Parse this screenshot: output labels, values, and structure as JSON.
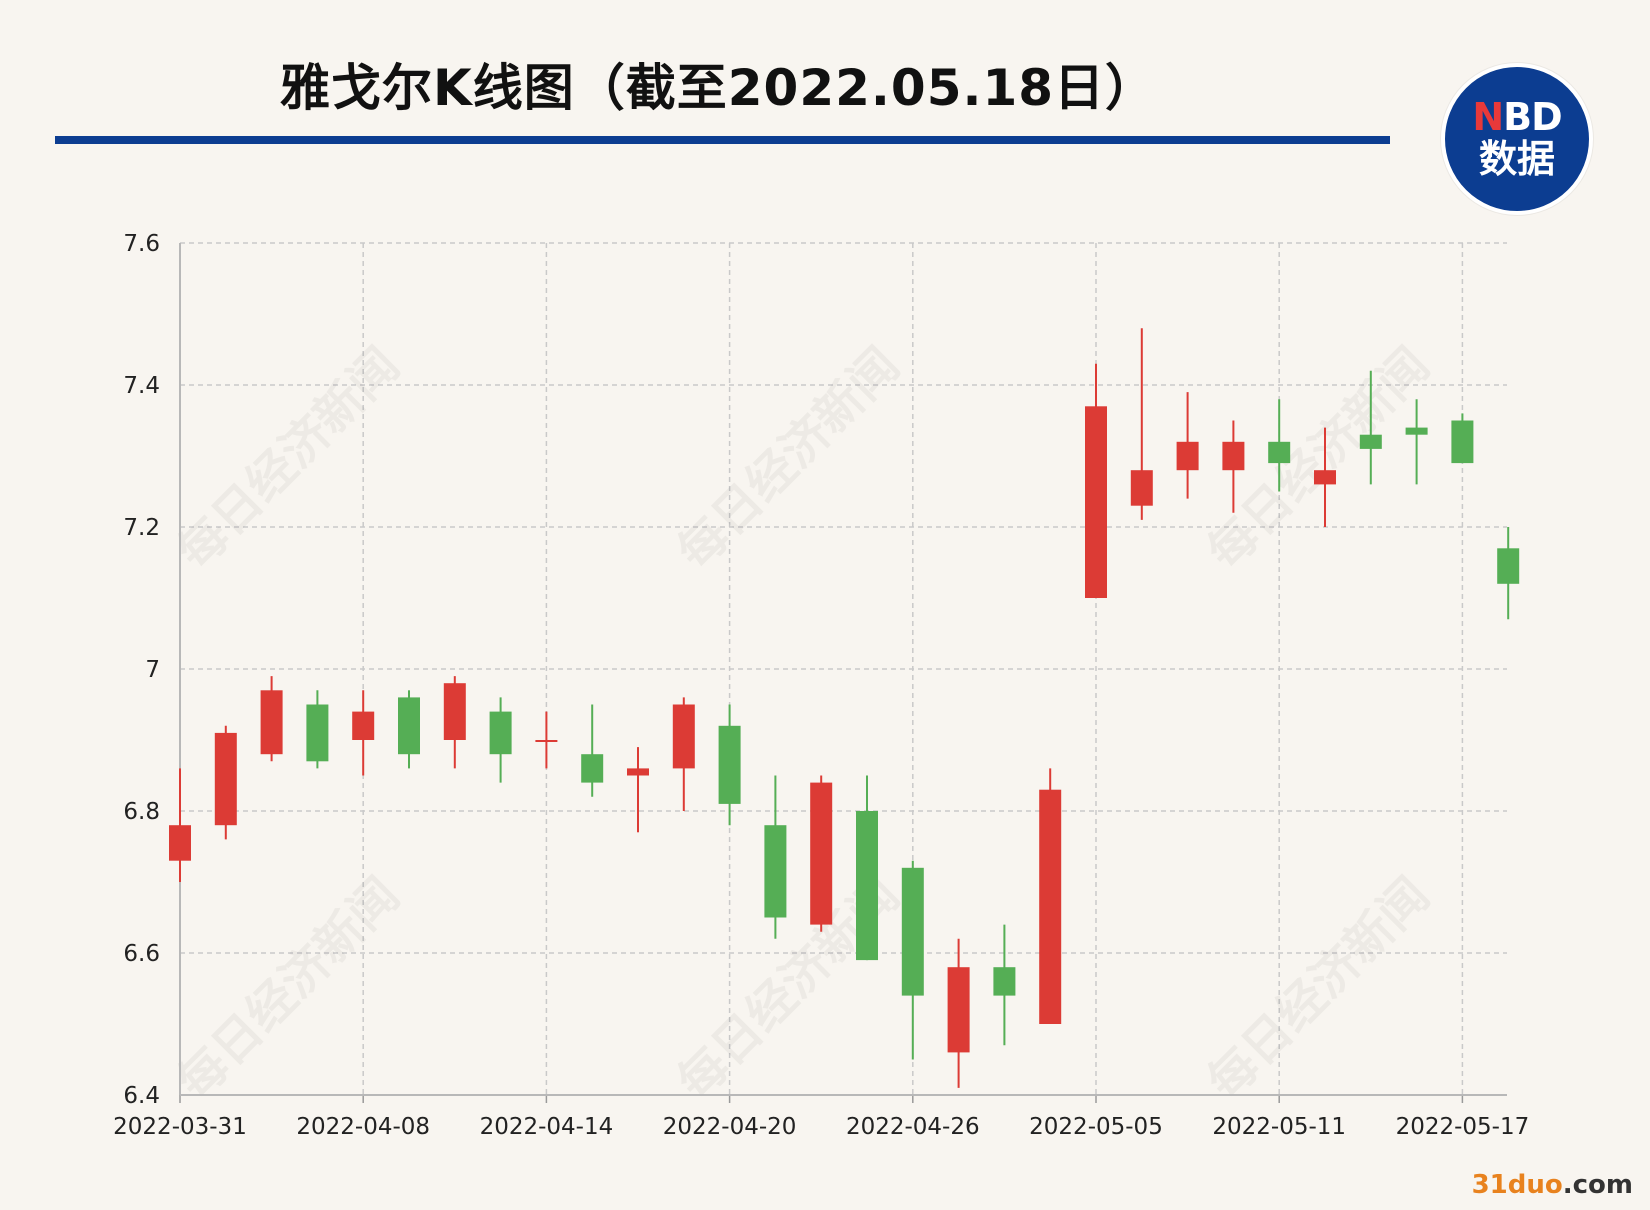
{
  "title": "雅戈尔K线图（截至2022.05.18日）",
  "logo": {
    "line1_accent": "N",
    "line1_rest": "BD",
    "line2": "数据"
  },
  "colors": {
    "background": "#f8f5f0",
    "rule": "#0c3d91",
    "logo_bg": "#0c3d91",
    "logo_accent": "#e8393a",
    "up": "#dc3b35",
    "down": "#55ae55",
    "grid": "#c9c9c9",
    "axis_text": "#222222",
    "watermark_orange": "#e8821e"
  },
  "watermarks": {
    "diagonal_text": "每日经济新闻",
    "brand_main": "31duo",
    "brand_tld": ".com"
  },
  "chart_data": {
    "type": "candlestick",
    "title": "雅戈尔K线图（截至2022.05.18日）",
    "xlabel": "",
    "ylabel": "",
    "ylim": [
      6.4,
      7.6
    ],
    "yticks": [
      6.4,
      6.6,
      6.8,
      7,
      7.2,
      7.4,
      7.6
    ],
    "ytick_labels": [
      "6.4",
      "6.6",
      "6.8",
      "7",
      "7.2",
      "7.4",
      "7.6"
    ],
    "grid": true,
    "x_tick_labels": [
      {
        "index": 0,
        "label": "2022-03-31"
      },
      {
        "index": 4,
        "label": "2022-04-08"
      },
      {
        "index": 8,
        "label": "2022-04-14"
      },
      {
        "index": 12,
        "label": "2022-04-20"
      },
      {
        "index": 16,
        "label": "2022-04-26"
      },
      {
        "index": 20,
        "label": "2022-05-05"
      },
      {
        "index": 24,
        "label": "2022-05-11"
      },
      {
        "index": 28,
        "label": "2022-05-17"
      }
    ],
    "candles": [
      {
        "open": 6.73,
        "close": 6.78,
        "high": 6.86,
        "low": 6.7
      },
      {
        "open": 6.78,
        "close": 6.91,
        "high": 6.92,
        "low": 6.76
      },
      {
        "open": 6.88,
        "close": 6.97,
        "high": 6.99,
        "low": 6.87
      },
      {
        "open": 6.95,
        "close": 6.87,
        "high": 6.97,
        "low": 6.86
      },
      {
        "open": 6.9,
        "close": 6.94,
        "high": 6.97,
        "low": 6.85
      },
      {
        "open": 6.96,
        "close": 6.88,
        "high": 6.97,
        "low": 6.86
      },
      {
        "open": 6.9,
        "close": 6.98,
        "high": 6.99,
        "low": 6.86
      },
      {
        "open": 6.94,
        "close": 6.88,
        "high": 6.96,
        "low": 6.84
      },
      {
        "open": 6.9,
        "close": 6.9,
        "high": 6.94,
        "low": 6.86
      },
      {
        "open": 6.88,
        "close": 6.84,
        "high": 6.95,
        "low": 6.82
      },
      {
        "open": 6.85,
        "close": 6.86,
        "high": 6.89,
        "low": 6.77
      },
      {
        "open": 6.86,
        "close": 6.95,
        "high": 6.96,
        "low": 6.8
      },
      {
        "open": 6.92,
        "close": 6.81,
        "high": 6.95,
        "low": 6.78
      },
      {
        "open": 6.78,
        "close": 6.65,
        "high": 6.85,
        "low": 6.62
      },
      {
        "open": 6.64,
        "close": 6.84,
        "high": 6.85,
        "low": 6.63
      },
      {
        "open": 6.8,
        "close": 6.59,
        "high": 6.85,
        "low": 6.59
      },
      {
        "open": 6.72,
        "close": 6.54,
        "high": 6.73,
        "low": 6.45
      },
      {
        "open": 6.46,
        "close": 6.58,
        "high": 6.62,
        "low": 6.41
      },
      {
        "open": 6.58,
        "close": 6.54,
        "high": 6.64,
        "low": 6.47
      },
      {
        "open": 6.5,
        "close": 6.83,
        "high": 6.86,
        "low": 6.5
      },
      {
        "open": 7.1,
        "close": 7.37,
        "high": 7.43,
        "low": 7.1
      },
      {
        "open": 7.23,
        "close": 7.28,
        "high": 7.48,
        "low": 7.21
      },
      {
        "open": 7.28,
        "close": 7.32,
        "high": 7.39,
        "low": 7.24
      },
      {
        "open": 7.28,
        "close": 7.32,
        "high": 7.35,
        "low": 7.22
      },
      {
        "open": 7.32,
        "close": 7.29,
        "high": 7.38,
        "low": 7.25
      },
      {
        "open": 7.26,
        "close": 7.28,
        "high": 7.34,
        "low": 7.2
      },
      {
        "open": 7.33,
        "close": 7.31,
        "high": 7.42,
        "low": 7.26
      },
      {
        "open": 7.34,
        "close": 7.33,
        "high": 7.38,
        "low": 7.26
      },
      {
        "open": 7.35,
        "close": 7.29,
        "high": 7.36,
        "low": 7.29
      },
      {
        "open": 7.17,
        "close": 7.12,
        "high": 7.2,
        "low": 7.07
      }
    ]
  }
}
